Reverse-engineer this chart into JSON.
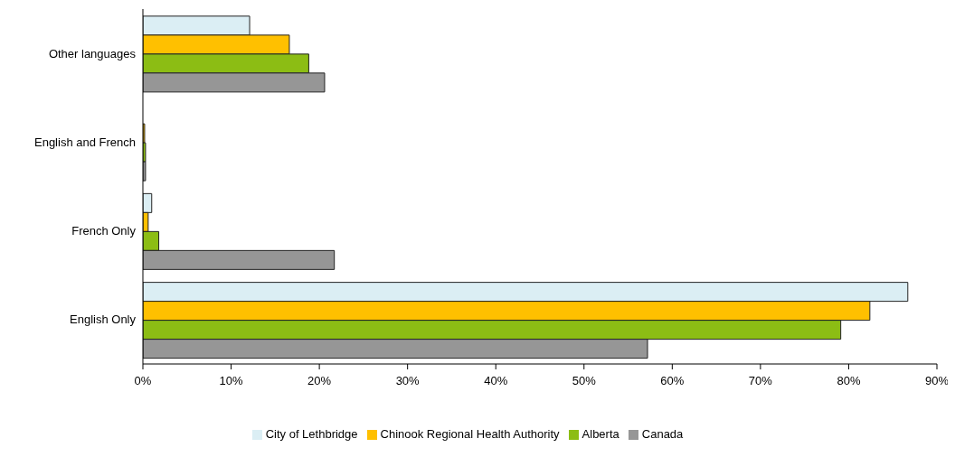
{
  "chart_data": {
    "type": "bar",
    "orientation": "horizontal",
    "categories": [
      "Other languages",
      "English and French",
      "French Only",
      "English Only"
    ],
    "series": [
      {
        "name": "City of Lethbridge",
        "color": "#dbeef4",
        "values": [
          12.1,
          null,
          1.0,
          86.7
        ]
      },
      {
        "name": "Chinook Regional Health Authority",
        "color": "#ffc000",
        "values": [
          16.6,
          0.2,
          0.6,
          82.4
        ]
      },
      {
        "name": "Alberta",
        "color": "#8cbd14",
        "values": [
          18.8,
          0.3,
          1.8,
          79.1
        ]
      },
      {
        "name": "Canada",
        "color": "#969696",
        "values": [
          20.6,
          0.3,
          21.7,
          57.2
        ]
      }
    ],
    "xlim": [
      0,
      90
    ],
    "xticks": [
      {
        "value": 0,
        "label": "0%"
      },
      {
        "value": 10,
        "label": "10%"
      },
      {
        "value": 20,
        "label": "20%"
      },
      {
        "value": 30,
        "label": "30%"
      },
      {
        "value": 40,
        "label": "40%"
      },
      {
        "value": 50,
        "label": "50%"
      },
      {
        "value": 60,
        "label": "60%"
      },
      {
        "value": 70,
        "label": "70%"
      },
      {
        "value": 80,
        "label": "80%"
      },
      {
        "value": 90,
        "label": "90%"
      }
    ],
    "grid": false,
    "legend": "bottom"
  }
}
